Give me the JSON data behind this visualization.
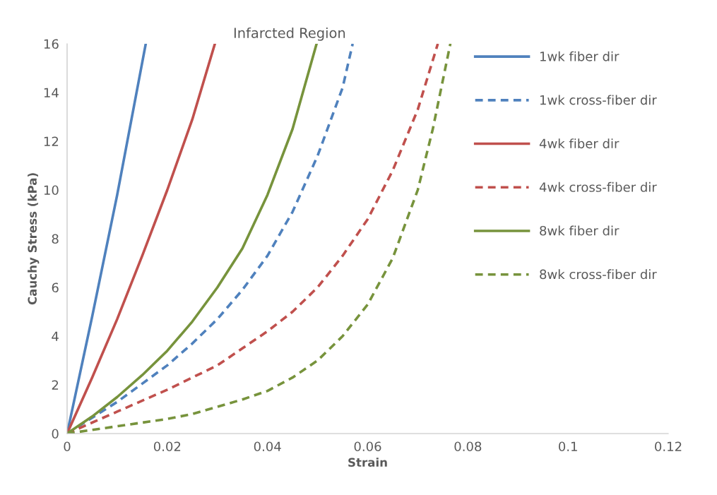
{
  "chart_data": {
    "type": "line",
    "title": "Infarcted Region",
    "xlabel": "Strain",
    "ylabel": "Cauchy Stress (kPa)",
    "xlim": [
      0,
      0.12
    ],
    "xticks": [
      0,
      0.02,
      0.04,
      0.06,
      0.08,
      0.1,
      0.12
    ],
    "ylim": [
      0,
      16
    ],
    "yticks": [
      0,
      2,
      4,
      6,
      8,
      10,
      12,
      14,
      16
    ],
    "grid": false,
    "legend": "right",
    "marker": "none",
    "series": [
      {
        "name": "1wk fiber dir",
        "color": "#4f81bd",
        "line_style": "solid",
        "x": [
          0,
          0.005,
          0.01,
          0.0157
        ],
        "values": [
          0,
          4.8,
          9.8,
          16
        ]
      },
      {
        "name": "1wk cross-fiber dir",
        "color": "#4f81bd",
        "line_style": "dashed",
        "x": [
          0,
          0.01,
          0.02,
          0.025,
          0.03,
          0.035,
          0.04,
          0.045,
          0.05,
          0.055,
          0.057
        ],
        "values": [
          0,
          1.3,
          2.8,
          3.7,
          4.7,
          5.9,
          7.3,
          9.1,
          11.4,
          14.2,
          16
        ]
      },
      {
        "name": "4wk fiber dir",
        "color": "#c0504d",
        "line_style": "solid",
        "x": [
          0,
          0.005,
          0.01,
          0.015,
          0.02,
          0.025,
          0.0295
        ],
        "values": [
          0,
          2.3,
          4.7,
          7.3,
          10,
          12.9,
          16
        ]
      },
      {
        "name": "4wk cross-fiber dir",
        "color": "#c0504d",
        "line_style": "dashed",
        "x": [
          0,
          0.01,
          0.02,
          0.03,
          0.035,
          0.04,
          0.045,
          0.05,
          0.055,
          0.06,
          0.065,
          0.07,
          0.074
        ],
        "values": [
          0,
          0.9,
          1.8,
          2.8,
          3.5,
          4.2,
          5,
          6,
          7.3,
          8.8,
          10.8,
          13.3,
          16
        ]
      },
      {
        "name": "8wk fiber dir",
        "color": "#77933c",
        "line_style": "solid",
        "x": [
          0,
          0.005,
          0.01,
          0.015,
          0.02,
          0.025,
          0.03,
          0.035,
          0.04,
          0.045,
          0.0498
        ],
        "values": [
          0,
          0.7,
          1.5,
          2.4,
          3.4,
          4.6,
          6,
          7.6,
          9.8,
          12.5,
          16
        ]
      },
      {
        "name": "8wk cross-fiber dir",
        "color": "#77933c",
        "line_style": "dashed",
        "x": [
          0,
          0.01,
          0.02,
          0.025,
          0.03,
          0.035,
          0.04,
          0.045,
          0.05,
          0.055,
          0.06,
          0.065,
          0.07,
          0.073,
          0.0765
        ],
        "values": [
          0,
          0.3,
          0.6,
          0.8,
          1.1,
          1.4,
          1.75,
          2.3,
          3,
          4,
          5.3,
          7.2,
          10,
          12.5,
          16
        ]
      }
    ]
  }
}
